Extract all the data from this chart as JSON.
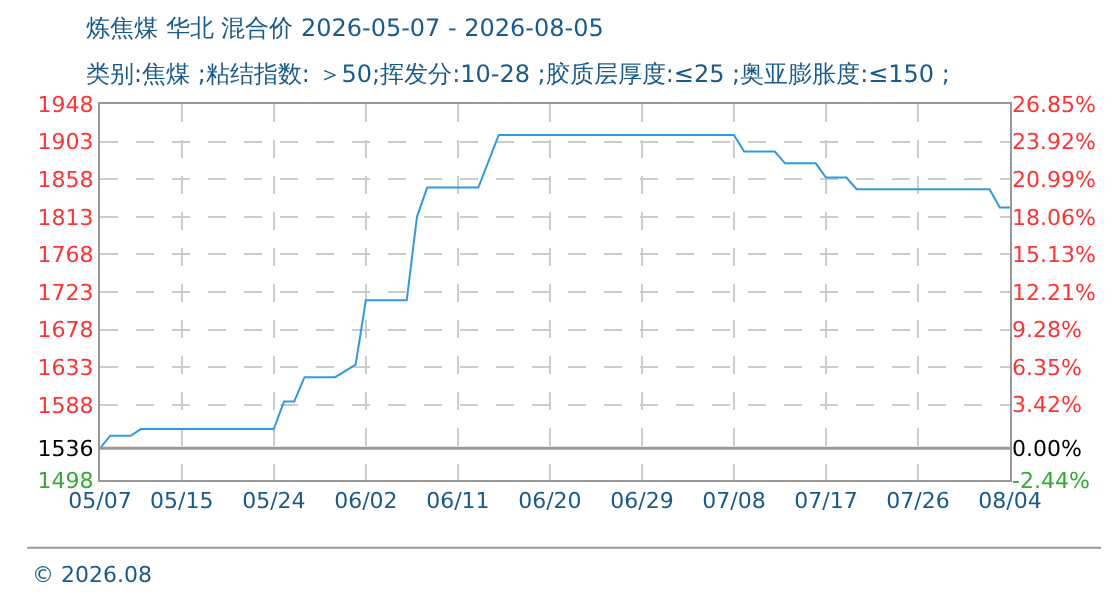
{
  "chart_data": {
    "type": "line",
    "title": "炼焦煤 华北 混合价 2026-05-07 - 2026-08-05",
    "subtitle": "类别:焦煤 ;粘结指数: ＞50;挥发分:10-28 ;胶质层厚度:≤25 ;奥亚膨胀度:≤150 ;",
    "x": [
      "2026-05-07",
      "2026-05-08",
      "2026-05-10",
      "2026-05-11",
      "2026-05-24",
      "2026-05-25",
      "2026-05-26",
      "2026-05-27",
      "2026-05-30",
      "2026-06-01",
      "2026-06-02",
      "2026-06-06",
      "2026-06-07",
      "2026-06-08",
      "2026-06-13",
      "2026-06-15",
      "2026-07-08",
      "2026-07-09",
      "2026-07-12",
      "2026-07-13",
      "2026-07-16",
      "2026-07-17",
      "2026-07-19",
      "2026-07-20",
      "2026-08-02",
      "2026-08-03",
      "2026-08-04"
    ],
    "series": [
      {
        "color": "#3399dd",
        "values": [
          1536,
          1551,
          1551,
          1559,
          1559,
          1592,
          1592,
          1621,
          1621,
          1636,
          1713,
          1713,
          1813,
          1848,
          1848,
          1911,
          1911,
          1891,
          1891,
          1877,
          1877,
          1860,
          1860,
          1846,
          1846,
          1824,
          1824
        ]
      }
    ],
    "xlim": [
      "2026-05-07",
      "2026-08-04"
    ],
    "xticks": [
      {
        "value": "2026-05-07",
        "label": "05/07"
      },
      {
        "value": "2026-05-15",
        "label": "05/15"
      },
      {
        "value": "2026-05-24",
        "label": "05/24"
      },
      {
        "value": "2026-06-02",
        "label": "06/02"
      },
      {
        "value": "2026-06-11",
        "label": "06/11"
      },
      {
        "value": "2026-06-20",
        "label": "06/20"
      },
      {
        "value": "2026-06-29",
        "label": "06/29"
      },
      {
        "value": "2026-07-08",
        "label": "07/08"
      },
      {
        "value": "2026-07-17",
        "label": "07/17"
      },
      {
        "value": "2026-07-26",
        "label": "07/26"
      },
      {
        "value": "2026-08-04",
        "label": "08/04"
      }
    ],
    "ylim": [
      1498,
      1948
    ],
    "yticks": [
      1498,
      1536,
      1588,
      1633,
      1678,
      1723,
      1768,
      1813,
      1858,
      1903,
      1948
    ],
    "y2lim": [
      -2.44,
      26.85
    ],
    "y2ticks": [
      {
        "value": -2.44,
        "label": "-2.44%"
      },
      {
        "value": 0,
        "label": "0.00%"
      },
      {
        "value": 3.42,
        "label": "3.42%"
      },
      {
        "value": 6.35,
        "label": "6.35%"
      },
      {
        "value": 9.28,
        "label": "9.28%"
      },
      {
        "value": 12.21,
        "label": "12.21%"
      },
      {
        "value": 15.13,
        "label": "15.13%"
      },
      {
        "value": 18.06,
        "label": "18.06%"
      },
      {
        "value": 20.99,
        "label": "20.99%"
      },
      {
        "value": 23.92,
        "label": "23.92%"
      },
      {
        "value": 26.85,
        "label": "26.85%"
      }
    ],
    "ref_lines": [
      {
        "axis": "y",
        "value": 1536,
        "color": "#999999"
      }
    ],
    "grid": true,
    "legend": false,
    "marker": "none",
    "line_style": "solid",
    "annotations": [
      "© 2026.08"
    ]
  }
}
